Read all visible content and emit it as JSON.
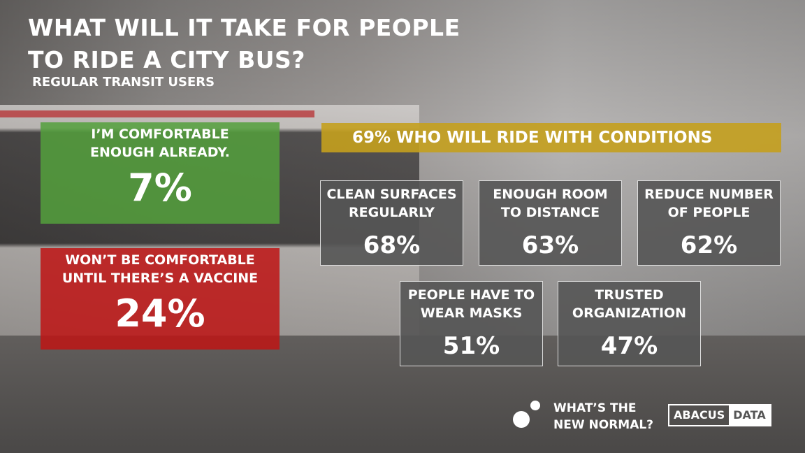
{
  "header": {
    "title": [
      "WHAT WILL IT TAKE FOR PEOPLE",
      "TO RIDE A CITY BUS?"
    ],
    "subtitle": "REGULAR TRANSIT USERS"
  },
  "left": [
    {
      "label": [
        "I’M COMFORTABLE",
        "ENOUGH ALREADY."
      ],
      "value": "7%"
    },
    {
      "label": [
        "WON’T BE COMFORTABLE",
        "UNTIL THERE’S A VACCINE"
      ],
      "value": "24%"
    }
  ],
  "banner": "69% WHO WILL RIDE WITH CONDITIONS",
  "conditions": [
    {
      "label": [
        "CLEAN SURFACES",
        "REGULARLY"
      ],
      "value": "68%"
    },
    {
      "label": [
        "ENOUGH ROOM",
        "TO DISTANCE"
      ],
      "value": "63%"
    },
    {
      "label": [
        "REDUCE NUMBER",
        "OF PEOPLE"
      ],
      "value": "62%"
    },
    {
      "label": [
        "PEOPLE HAVE TO",
        "WEAR MASKS"
      ],
      "value": "51%"
    },
    {
      "label": [
        "TRUSTED",
        "ORGANIZATION"
      ],
      "value": "47%"
    }
  ],
  "footer": {
    "tagline": [
      "WHAT’S THE",
      "NEW NORMAL?"
    ],
    "logo": [
      "ABACUS",
      "DATA"
    ]
  }
}
